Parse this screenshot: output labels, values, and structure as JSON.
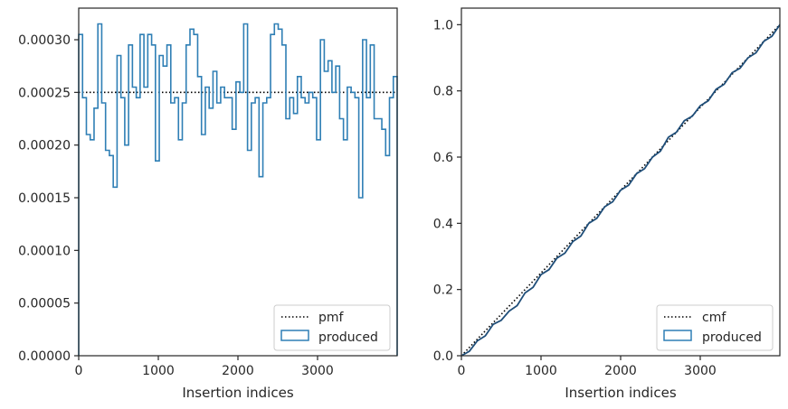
{
  "chart_data": [
    {
      "type": "step-histogram",
      "xlabel": "Insertion indices",
      "ylabel": "",
      "xlim": [
        0,
        4000
      ],
      "ylim": [
        0,
        0.00033
      ],
      "xticks": [
        0,
        1000,
        2000,
        3000
      ],
      "xtick_labels": [
        "0",
        "1000",
        "2000",
        "3000"
      ],
      "yticks": [
        0,
        5e-05,
        0.0001,
        0.00015,
        0.0002,
        0.00025,
        0.0003
      ],
      "ytick_labels": [
        "0.00000",
        "0.00005",
        "0.00010",
        "0.00015",
        "0.00020",
        "0.00025",
        "0.00030"
      ],
      "bin_width": 66.67,
      "series": [
        {
          "name": "pmf",
          "style": "dotted",
          "color": "#000000",
          "x": [
            0,
            4000
          ],
          "y": [
            0.00025,
            0.00025
          ]
        },
        {
          "name": "produced",
          "style": "step",
          "color": "#2f7fb5",
          "values": [
            0.000305,
            0.000245,
            0.00021,
            0.000205,
            0.000235,
            0.000315,
            0.00024,
            0.000195,
            0.00019,
            0.00016,
            0.000285,
            0.000245,
            0.0002,
            0.000295,
            0.000255,
            0.000245,
            0.000305,
            0.000255,
            0.000305,
            0.000295,
            0.000185,
            0.000285,
            0.000275,
            0.000295,
            0.00024,
            0.000245,
            0.000205,
            0.00024,
            0.000295,
            0.00031,
            0.000305,
            0.000265,
            0.00021,
            0.000255,
            0.000235,
            0.00027,
            0.00024,
            0.000255,
            0.000245,
            0.000245,
            0.000215,
            0.00026,
            0.00025,
            0.000315,
            0.000195,
            0.00024,
            0.000245,
            0.00017,
            0.00024,
            0.000245,
            0.000305,
            0.000315,
            0.00031,
            0.000295,
            0.000225,
            0.000245,
            0.00023,
            0.000265,
            0.000245,
            0.00024,
            0.00025,
            0.000245,
            0.000205,
            0.0003,
            0.00027,
            0.00028,
            0.00025,
            0.000275,
            0.000225,
            0.000205,
            0.000255,
            0.00025,
            0.000245,
            0.00015,
            0.0003,
            0.000245,
            0.000295,
            0.000225,
            0.000225,
            0.000215,
            0.00019,
            0.000245,
            0.000265
          ]
        }
      ],
      "legend": {
        "placement": "lower-right",
        "entries": [
          "pmf",
          "produced"
        ]
      },
      "grid": false
    },
    {
      "type": "step-cumulative",
      "xlabel": "Insertion indices",
      "ylabel": "",
      "xlim": [
        0,
        4000
      ],
      "ylim": [
        0,
        1.05
      ],
      "xticks": [
        0,
        1000,
        2000,
        3000
      ],
      "xtick_labels": [
        "0",
        "1000",
        "2000",
        "3000"
      ],
      "yticks": [
        0,
        0.2,
        0.4,
        0.6,
        0.8,
        1.0
      ],
      "ytick_labels": [
        "0.0",
        "0.2",
        "0.4",
        "0.6",
        "0.8",
        "1.0"
      ],
      "series": [
        {
          "name": "cmf",
          "style": "dotted",
          "color": "#000000",
          "x": [
            0,
            4000
          ],
          "y": [
            0,
            1.0
          ]
        },
        {
          "name": "produced",
          "style": "step",
          "color": "#1f4e79",
          "x": [
            0,
            200,
            400,
            600,
            800,
            1000,
            1200,
            1400,
            1600,
            1800,
            2000,
            2200,
            2400,
            2600,
            2800,
            3000,
            3200,
            3400,
            3600,
            3800,
            4000
          ],
          "y": [
            0,
            0.045,
            0.095,
            0.135,
            0.19,
            0.245,
            0.295,
            0.345,
            0.4,
            0.45,
            0.5,
            0.55,
            0.6,
            0.66,
            0.71,
            0.755,
            0.805,
            0.855,
            0.9,
            0.95,
            1.0
          ]
        }
      ],
      "legend": {
        "placement": "lower-right",
        "entries": [
          "cmf",
          "produced"
        ]
      },
      "grid": false
    }
  ]
}
